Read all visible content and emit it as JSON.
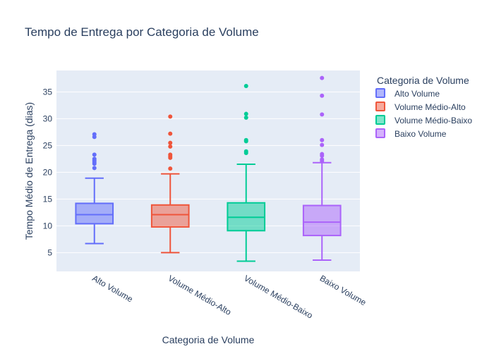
{
  "chart_data": {
    "type": "box",
    "title": "Tempo de Entrega por Categoria de Volume",
    "xlabel": "Categoria de Volume",
    "ylabel": "Tempo Médio de Entrega (dias)",
    "ylim": [
      1.5,
      39
    ],
    "yticks": [
      5,
      10,
      15,
      20,
      25,
      30,
      35
    ],
    "grid": true,
    "legend": {
      "title": "Categoria de Volume",
      "position": "right"
    },
    "categories": [
      "Alto Volume",
      "Volume Médio-Alto",
      "Volume Médio-Baixo",
      "Baixo Volume"
    ],
    "series": [
      {
        "name": "Alto Volume",
        "color": "#636efa",
        "min": 6.7,
        "q1": 10.4,
        "median": 12.1,
        "q3": 14.2,
        "max": 18.9,
        "outliers": [
          20.8,
          21.6,
          21.9,
          22.2,
          22.5,
          23.3,
          26.6,
          27.1
        ]
      },
      {
        "name": "Volume Médio-Alto",
        "color": "#ef553b",
        "min": 5.0,
        "q1": 9.8,
        "median": 12.1,
        "q3": 13.9,
        "max": 19.7,
        "outliers": [
          20.7,
          22.7,
          23.0,
          23.3,
          24.8,
          25.5,
          27.2,
          30.4
        ]
      },
      {
        "name": "Volume Médio-Baixo",
        "color": "#00cc96",
        "min": 3.4,
        "q1": 9.1,
        "median": 11.6,
        "q3": 14.3,
        "max": 21.5,
        "outliers": [
          23.6,
          23.9,
          25.8,
          26.0,
          30.2,
          30.9,
          36.1
        ]
      },
      {
        "name": "Baixo Volume",
        "color": "#ab63fa",
        "min": 3.6,
        "q1": 8.2,
        "median": 10.7,
        "q3": 13.8,
        "max": 21.8,
        "outliers": [
          22.1,
          22.4,
          23.1,
          23.4,
          25.1,
          26.0,
          30.8,
          34.3,
          37.6
        ]
      }
    ]
  }
}
